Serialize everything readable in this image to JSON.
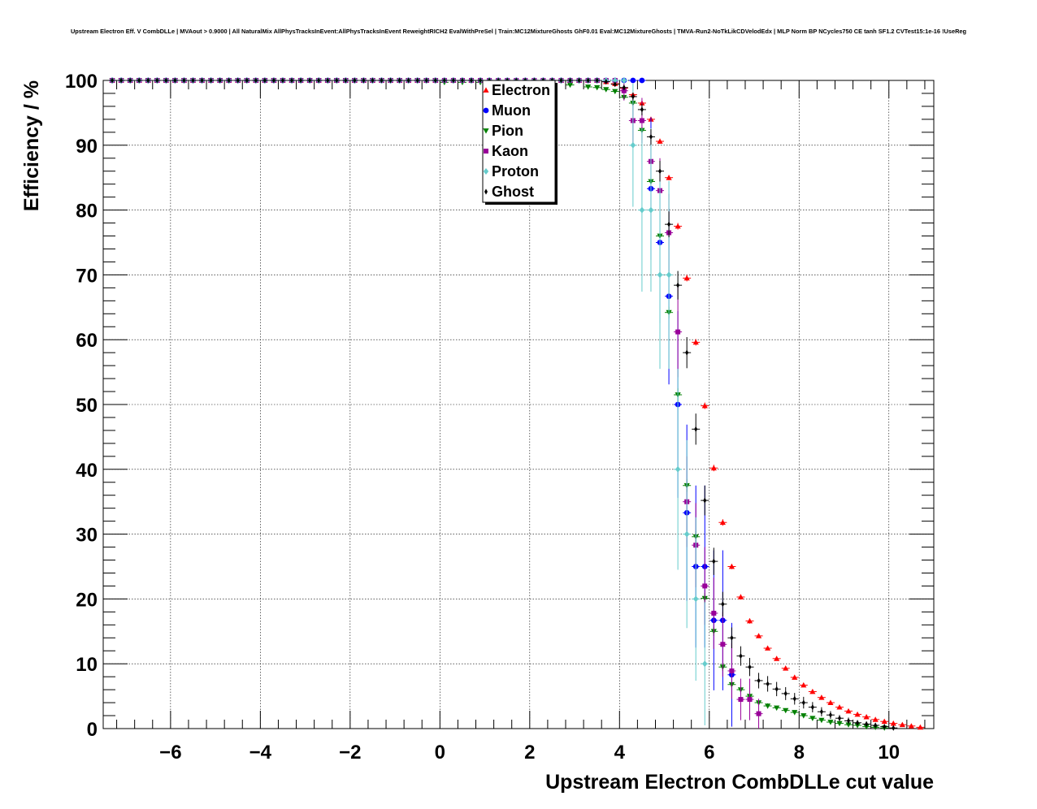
{
  "title": "Upstream Electron Eff. V CombDLLe | MVAout > 0.9000 | All NaturalMix AllPhysTracksInEvent:AllPhysTracksInEvent ReweightRICH2 EvalWithPreSel | Train:MC12MixtureGhosts GhF0.01 Eval:MC12MixtureGhosts | TMVA-Run2-NoTkLikCDVelodEdx | MLP Norm BP NCycles750 CE tanh SF1.2 CVTest15:1e-16 !UseReg",
  "chart_data": {
    "type": "scatter",
    "xlabel": "Upstream Electron CombDLLe cut value",
    "ylabel": "Efficiency / %",
    "xlim": [
      -7.5,
      11.0
    ],
    "ylim": [
      0,
      100
    ],
    "xticks": [
      -6,
      -4,
      -2,
      0,
      2,
      4,
      6,
      8,
      10
    ],
    "xtick_labels": [
      "−6",
      "−4",
      "−2",
      "0",
      "2",
      "4",
      "6",
      "8",
      "10"
    ],
    "yticks": [
      0,
      10,
      20,
      30,
      40,
      50,
      60,
      70,
      80,
      90,
      100
    ],
    "ytick_labels": [
      "0",
      "10",
      "20",
      "30",
      "40",
      "50",
      "60",
      "70",
      "80",
      "90",
      "100"
    ],
    "grid": true,
    "legend_position": "top-center",
    "series": [
      {
        "name": "Electron",
        "color": "#ff0000",
        "marker": "triangle-up",
        "x": [
          -7.3,
          3.5,
          3.7,
          3.9,
          4.1,
          4.3,
          4.5,
          4.7,
          4.9,
          5.1,
          5.3,
          5.5,
          5.7,
          5.9,
          6.1,
          6.3,
          6.5,
          6.7,
          6.9,
          7.1,
          7.3,
          7.5,
          7.7,
          7.9,
          8.1,
          8.3,
          8.5,
          8.7,
          8.9,
          9.1,
          9.3,
          9.5,
          9.7,
          9.9,
          10.1,
          10.3,
          10.5,
          10.7
        ],
        "y": [
          100,
          100,
          99.8,
          99.5,
          98.8,
          97.8,
          96.5,
          94.0,
          90.6,
          85.0,
          77.5,
          69.5,
          59.6,
          49.8,
          40.2,
          31.8,
          25.0,
          20.3,
          16.6,
          14.3,
          12.4,
          10.8,
          9.3,
          7.9,
          6.7,
          5.7,
          4.8,
          4.0,
          3.3,
          2.7,
          2.2,
          1.8,
          1.4,
          1.1,
          0.8,
          0.6,
          0.4,
          0.2
        ],
        "err": [
          0,
          0,
          0.1,
          0.1,
          0.2,
          0.2,
          0.3,
          0.3,
          0.4,
          0.4,
          0.5,
          0.5,
          0.5,
          0.5,
          0.5,
          0.5,
          0.4,
          0.4,
          0.4,
          0.3,
          0.3,
          0.3,
          0.3,
          0.3,
          0.2,
          0.2,
          0.2,
          0.2,
          0.2,
          0.2,
          0.1,
          0.1,
          0.1,
          0.1,
          0.1,
          0.1,
          0.1,
          0.1
        ]
      },
      {
        "name": "Muon",
        "color": "#0000ff",
        "marker": "circle",
        "x": [
          -7.3,
          4.3,
          4.5,
          4.7,
          4.9,
          5.1,
          5.3,
          5.5,
          5.7,
          5.9,
          6.1,
          6.3,
          6.5
        ],
        "y": [
          100,
          100,
          100,
          83.3,
          75.0,
          66.7,
          50.0,
          33.3,
          25.0,
          25.0,
          16.7,
          16.7,
          8.3
        ],
        "err": [
          0,
          0,
          0,
          11,
          12.5,
          13.6,
          14.4,
          13.6,
          12.5,
          12.5,
          10.8,
          10.8,
          8.0
        ]
      },
      {
        "name": "Pion",
        "color": "#008000",
        "marker": "triangle-down",
        "x": [
          -7.3,
          0.1,
          0.5,
          0.9,
          1.3,
          1.7,
          2.1,
          2.5,
          2.9,
          3.3,
          3.5,
          3.7,
          3.9,
          4.1,
          4.3,
          4.5,
          4.7,
          4.9,
          5.1,
          5.3,
          5.5,
          5.7,
          5.9,
          6.1,
          6.3,
          6.5,
          6.7,
          6.9,
          7.1,
          7.3,
          7.5,
          7.7,
          7.9,
          8.1,
          8.3,
          8.5,
          8.7,
          8.9,
          9.1,
          9.3,
          9.5,
          9.7,
          9.9
        ],
        "y": [
          100,
          99.7,
          99.7,
          99.7,
          99.7,
          99.7,
          99.6,
          99.5,
          99.3,
          99.0,
          98.9,
          98.6,
          98.3,
          97.4,
          96.5,
          92.3,
          84.4,
          76.0,
          64.2,
          51.5,
          37.5,
          29.6,
          20.1,
          15.0,
          9.5,
          6.8,
          6.0,
          5.0,
          4.0,
          3.5,
          3.2,
          2.8,
          2.5,
          2.0,
          1.6,
          1.3,
          1.0,
          0.8,
          0.6,
          0.5,
          0.3,
          0.2,
          0.1
        ],
        "err": [
          0,
          0.1,
          0.1,
          0.1,
          0.1,
          0.1,
          0.1,
          0.1,
          0.1,
          0.2,
          0.2,
          0.2,
          0.3,
          0.3,
          0.4,
          0.5,
          0.7,
          0.8,
          0.9,
          1.0,
          1.0,
          0.9,
          0.8,
          0.7,
          0.6,
          0.5,
          0.5,
          0.4,
          0.4,
          0.4,
          0.3,
          0.3,
          0.3,
          0.3,
          0.2,
          0.2,
          0.2,
          0.2,
          0.1,
          0.1,
          0.1,
          0.1,
          0.1
        ]
      },
      {
        "name": "Kaon",
        "color": "#990099",
        "marker": "square",
        "x": [
          -7.3,
          4.1,
          4.3,
          4.5,
          4.7,
          4.9,
          5.1,
          5.3,
          5.5,
          5.7,
          5.9,
          6.1,
          6.3,
          6.5,
          6.7,
          6.9,
          7.1
        ],
        "y": [
          100,
          98.4,
          93.8,
          93.8,
          87.5,
          83.0,
          76.5,
          61.2,
          35.0,
          28.3,
          22.0,
          17.8,
          13.0,
          8.9,
          4.5,
          4.5,
          2.3
        ],
        "err": [
          0,
          1.5,
          3.5,
          3.5,
          4.5,
          5.0,
          6.0,
          7.0,
          7.0,
          6.5,
          6.0,
          5.5,
          5.0,
          4.3,
          3.2,
          3.2,
          2.3
        ]
      },
      {
        "name": "Proton",
        "color": "#66cccc",
        "marker": "diamond",
        "x": [
          -7.3,
          3.9,
          4.1,
          4.3,
          4.5,
          4.7,
          4.9,
          5.1,
          5.3,
          5.5,
          5.7,
          5.9
        ],
        "y": [
          100,
          100,
          100,
          90.0,
          80.0,
          80.0,
          70.0,
          70.0,
          40.0,
          30.0,
          20.0,
          10.0
        ],
        "err": [
          0,
          0,
          0,
          9.5,
          12.6,
          12.6,
          14.5,
          14.5,
          15.5,
          14.5,
          12.6,
          9.5
        ]
      },
      {
        "name": "Ghost",
        "color": "#000000",
        "marker": "cross",
        "x": [
          -7.3,
          3.7,
          3.9,
          4.1,
          4.3,
          4.5,
          4.7,
          4.9,
          5.1,
          5.3,
          5.5,
          5.7,
          5.9,
          6.1,
          6.3,
          6.5,
          6.7,
          6.9,
          7.1,
          7.3,
          7.5,
          7.7,
          7.9,
          8.1,
          8.3,
          8.5,
          8.7,
          8.9,
          9.1,
          9.3,
          9.5,
          9.7,
          9.9,
          10.1
        ],
        "y": [
          100,
          99.8,
          99.4,
          98.9,
          97.5,
          95.5,
          91.3,
          86.0,
          77.8,
          68.4,
          58.0,
          46.2,
          35.2,
          25.8,
          19.2,
          14.0,
          11.2,
          9.5,
          7.4,
          6.9,
          6.1,
          5.4,
          4.6,
          4.0,
          3.3,
          2.6,
          2.1,
          1.6,
          1.2,
          0.9,
          0.7,
          0.5,
          0.3,
          0.1
        ],
        "err": [
          0,
          0.2,
          0.3,
          0.4,
          0.6,
          0.9,
          1.2,
          1.6,
          2.0,
          2.2,
          2.4,
          2.4,
          2.3,
          2.1,
          1.9,
          1.6,
          1.5,
          1.4,
          1.2,
          1.2,
          1.1,
          1.0,
          0.9,
          0.9,
          0.8,
          0.7,
          0.6,
          0.5,
          0.5,
          0.4,
          0.4,
          0.3,
          0.2,
          0.1
        ]
      }
    ]
  }
}
